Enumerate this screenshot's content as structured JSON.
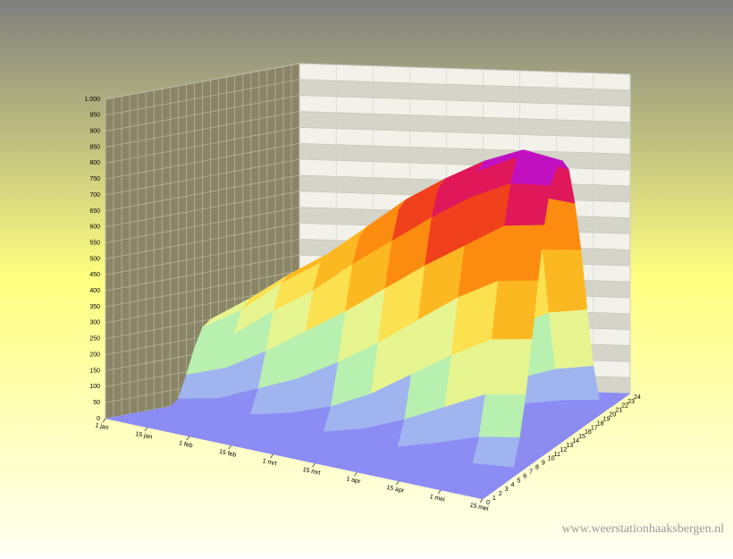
{
  "chart_data": {
    "type": "surface3d",
    "categories": [
      "1 jan",
      "15 jan",
      "1 feb",
      "15 feb",
      "1 mrt",
      "15 mrt",
      "1 apr",
      "15 apr",
      "1 mei",
      "15 mei"
    ],
    "hours": [
      0,
      1,
      2,
      3,
      4,
      5,
      6,
      7,
      8,
      9,
      10,
      11,
      12,
      13,
      14,
      15,
      16,
      17,
      18,
      19,
      20,
      21,
      22,
      23,
      24
    ],
    "zlim": [
      0,
      1000
    ],
    "zticks": [
      0,
      50,
      100,
      150,
      200,
      250,
      300,
      350,
      400,
      450,
      500,
      550,
      600,
      650,
      700,
      750,
      800,
      850,
      900,
      950,
      {
        "value": 1000,
        "label": "1.000"
      }
    ],
    "values": [
      [
        0,
        0,
        0,
        0,
        0,
        0,
        0,
        0,
        0,
        20,
        90,
        170,
        230,
        250,
        200,
        120,
        40,
        5,
        0,
        0,
        0,
        0,
        0,
        0,
        0
      ],
      [
        0,
        0,
        0,
        0,
        0,
        0,
        0,
        0,
        0,
        40,
        130,
        230,
        300,
        330,
        270,
        170,
        70,
        10,
        0,
        0,
        0,
        0,
        0,
        0,
        0
      ],
      [
        0,
        0,
        0,
        0,
        0,
        0,
        0,
        0,
        15,
        90,
        200,
        320,
        400,
        420,
        360,
        240,
        110,
        25,
        0,
        0,
        0,
        0,
        0,
        0,
        0
      ],
      [
        0,
        0,
        0,
        0,
        0,
        0,
        0,
        0,
        40,
        140,
        280,
        400,
        480,
        500,
        440,
        320,
        170,
        50,
        5,
        0,
        0,
        0,
        0,
        0,
        0
      ],
      [
        0,
        0,
        0,
        0,
        0,
        0,
        0,
        10,
        80,
        210,
        360,
        500,
        580,
        600,
        540,
        410,
        250,
        90,
        15,
        0,
        0,
        0,
        0,
        0,
        0
      ],
      [
        0,
        0,
        0,
        0,
        0,
        0,
        0,
        40,
        140,
        290,
        450,
        590,
        680,
        700,
        640,
        500,
        330,
        150,
        40,
        0,
        0,
        0,
        0,
        0,
        0
      ],
      [
        0,
        0,
        0,
        0,
        0,
        0,
        15,
        90,
        220,
        380,
        540,
        680,
        760,
        780,
        720,
        580,
        400,
        210,
        70,
        5,
        0,
        0,
        0,
        0,
        0
      ],
      [
        0,
        0,
        0,
        0,
        0,
        5,
        50,
        150,
        300,
        470,
        620,
        760,
        830,
        850,
        800,
        660,
        480,
        280,
        110,
        20,
        0,
        0,
        0,
        0,
        0
      ],
      [
        0,
        0,
        0,
        0,
        0,
        20,
        90,
        210,
        370,
        540,
        700,
        820,
        890,
        900,
        860,
        730,
        550,
        340,
        150,
        40,
        0,
        0,
        0,
        0,
        0
      ],
      [
        0,
        0,
        0,
        0,
        0,
        30,
        110,
        230,
        390,
        560,
        720,
        830,
        870,
        880,
        840,
        720,
        560,
        360,
        170,
        50,
        5,
        0,
        0,
        0,
        0
      ]
    ]
  },
  "watermark": "www.weerstationhaaksbergen.nl"
}
